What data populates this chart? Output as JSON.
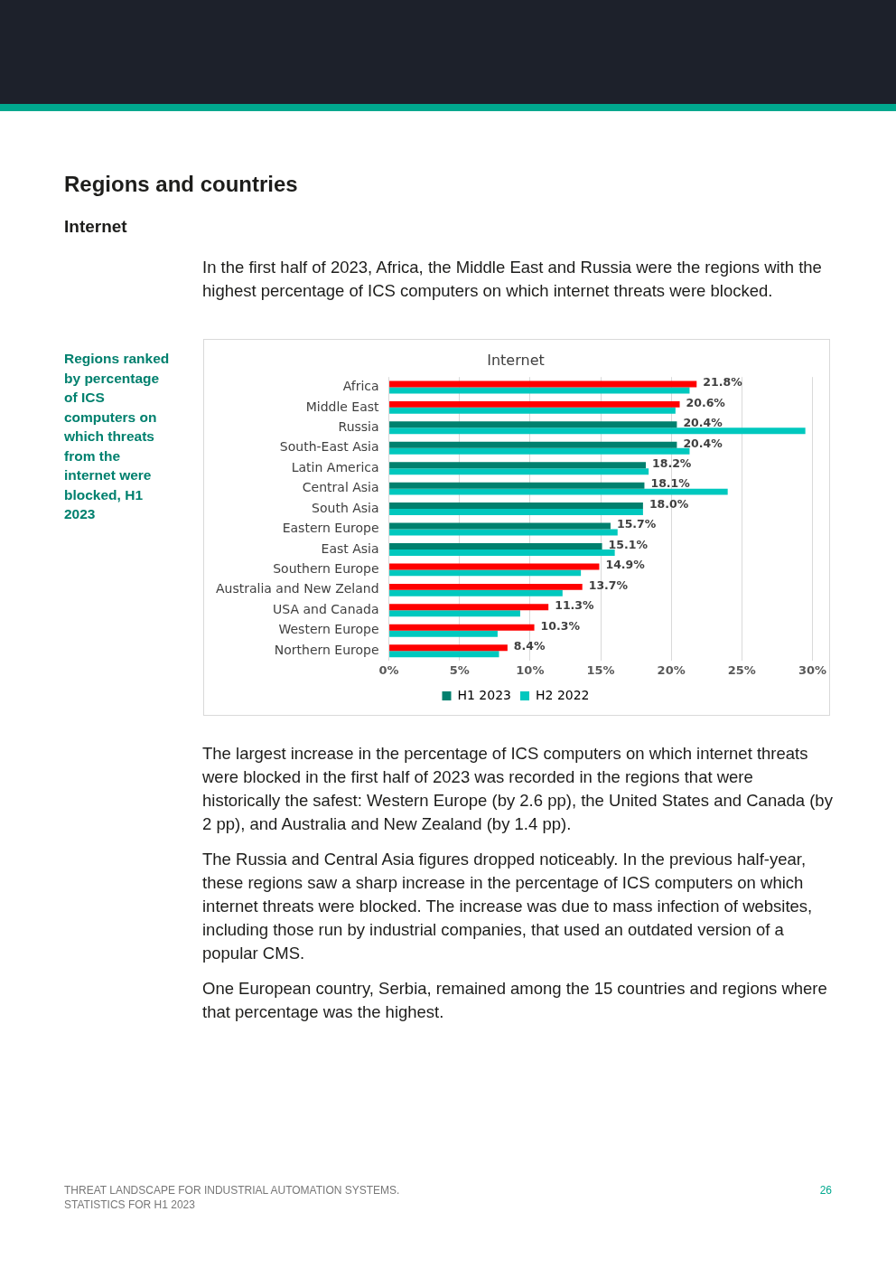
{
  "chart_data": {
    "type": "bar",
    "orientation": "horizontal",
    "title": "Internet",
    "categories": [
      "Africa",
      "Middle East",
      "Russia",
      "South-East Asia",
      "Latin America",
      "Central Asia",
      "South Asia",
      "Eastern Europe",
      "East Asia",
      "Southern Europe",
      "Australia and New Zeland",
      "USA and Canada",
      "Western Europe",
      "Northern Europe"
    ],
    "series": [
      {
        "name": "H1 2023",
        "color": "#00806e",
        "colors": [
          "#ff0000",
          "#ff0000",
          "#00806e",
          "#00806e",
          "#00806e",
          "#00806e",
          "#00806e",
          "#00806e",
          "#00806e",
          "#ff0000",
          "#ff0000",
          "#ff0000",
          "#ff0000",
          "#ff0000"
        ],
        "values": [
          21.8,
          20.6,
          20.4,
          20.4,
          18.2,
          18.1,
          18.0,
          15.7,
          15.1,
          14.9,
          13.7,
          11.3,
          10.3,
          8.4
        ],
        "value_labels": [
          "21.8%",
          "20.6%",
          "20.4%",
          "20.4%",
          "18.2%",
          "18.1%",
          "18.0%",
          "15.7%",
          "15.1%",
          "14.9%",
          "13.7%",
          "11.3%",
          "10.3%",
          "8.4%"
        ]
      },
      {
        "name": "H2 2022",
        "color": "#00c8be",
        "values": [
          21.3,
          20.3,
          29.5,
          21.3,
          18.4,
          24.0,
          18.0,
          16.2,
          16.0,
          13.6,
          12.3,
          9.3,
          7.7,
          7.8
        ]
      }
    ],
    "xlim": [
      0,
      30
    ],
    "xticks": [
      {
        "value": 0,
        "label": "0%"
      },
      {
        "value": 5,
        "label": "5%"
      },
      {
        "value": 10,
        "label": "10%"
      },
      {
        "value": 15,
        "label": "15%"
      },
      {
        "value": 20,
        "label": "20%"
      },
      {
        "value": 25,
        "label": "25%"
      },
      {
        "value": 30,
        "label": "30%"
      }
    ],
    "grid": "x",
    "legend": "bottom",
    "annotations": [
      "Regions and countries",
      "Internet",
      "In the first half of 2023, Africa, the Middle East and Russia were the regions with the highest percentage of ICS computers on which internet threats were blocked.",
      "Regions ranked by percentage of ICS computers on which threats from the internet were blocked, H1 2023",
      "The largest increase in the percentage of ICS computers on which internet threats were blocked in the first half of 2023 was recorded in the regions that were historically the safest: Western Europe (by 2.6 pp), the United States and Canada (by 2 pp), and Australia and New Zealand (by 1.4 pp).",
      "The Russia and Central Asia figures dropped noticeably. In the previous half-year, these regions saw a sharp increase in the percentage of ICS computers on which internet threats were blocked. The increase was due to mass infection of websites, including those run by industrial companies, that used an outdated version of a popular CMS.",
      "One European country, Serbia, remained among the 15 countries and regions where that percentage was the highest.",
      "THREAT LANDSCAPE FOR INDUSTRIAL AUTOMATION SYSTEMS.",
      "STATISTICS FOR H1 2023",
      "26"
    ]
  }
}
